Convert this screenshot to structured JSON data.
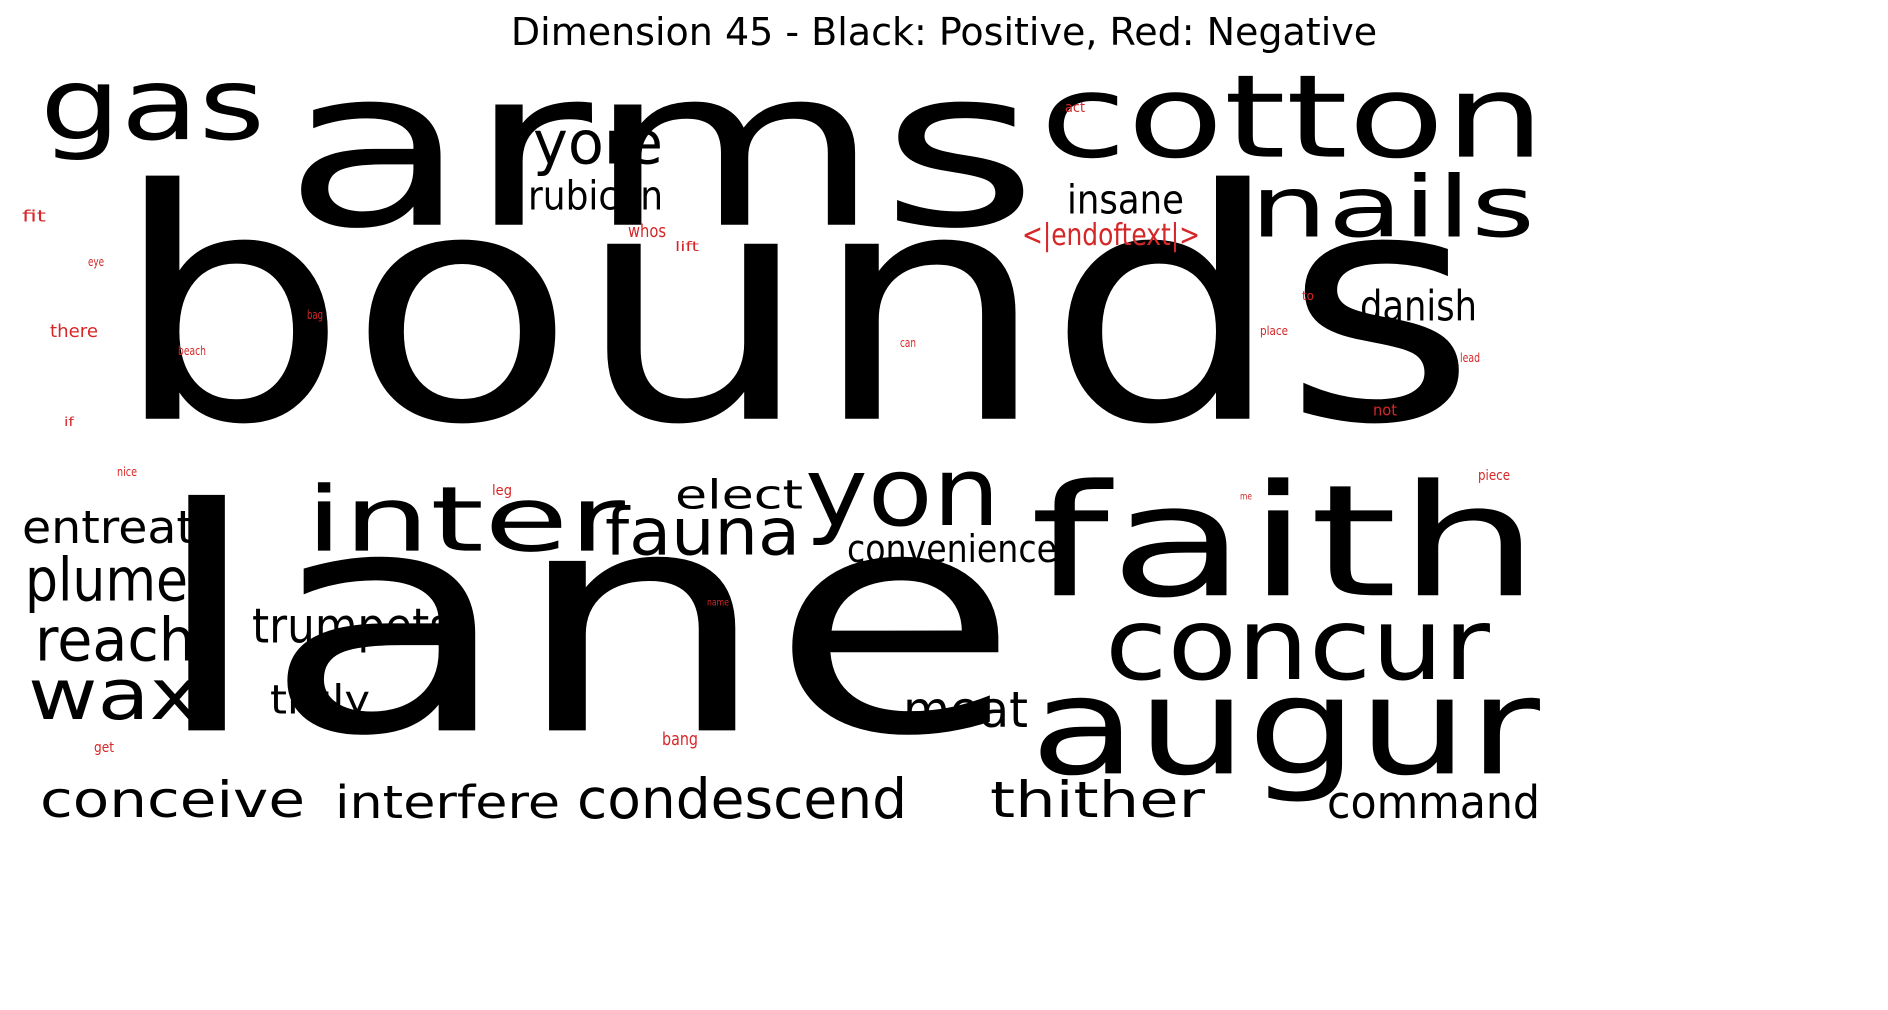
{
  "title": "Dimension 45 - Black: Positive, Red: Negative",
  "colors": {
    "positive": "#000000",
    "negative": "#d62728"
  },
  "positive_words": [
    "arms",
    "bounds",
    "lane",
    "gas",
    "cotton",
    "nails",
    "faith",
    "concur",
    "augur",
    "inter",
    "yon",
    "fauna",
    "elect",
    "yore",
    "rubicon",
    "insane",
    "danish",
    "entreat",
    "plume",
    "reach",
    "wax",
    "trumpets",
    "truly",
    "meat",
    "convenience",
    "conceive",
    "interfere",
    "condescend",
    "thither",
    "command"
  ],
  "negative_words": [
    "act",
    "fit",
    "whos",
    "lift",
    "<|endoftext|>",
    "eye",
    "there",
    "bag",
    "beach",
    "can",
    "to",
    "place",
    "lead",
    "not",
    "if",
    "nice",
    "leg",
    "piece",
    "me",
    "name",
    "get",
    "bang"
  ]
}
